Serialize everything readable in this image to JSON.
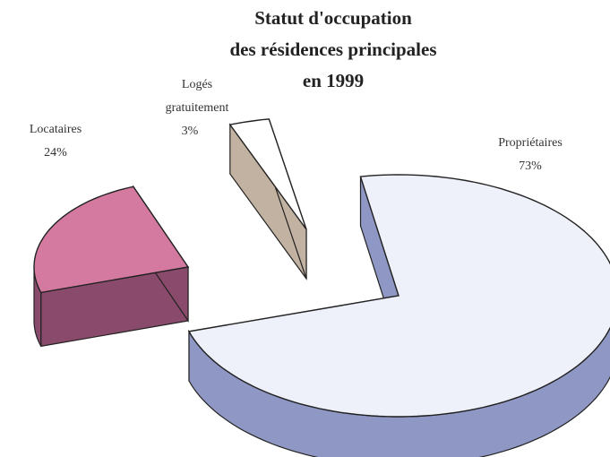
{
  "chart_data": {
    "type": "pie3d",
    "title": [
      "Statut d'occupation",
      "des résidences principales",
      "en 1999"
    ],
    "categories": [
      "Propriétaires",
      "Locataires",
      "Logés gratuitement"
    ],
    "values": [
      73,
      24,
      3
    ],
    "value_labels": [
      "73%",
      "24%",
      "3%"
    ],
    "colors": [
      "#eef0fa",
      "#d47aa0",
      "#ffffff"
    ],
    "side_colors": [
      "#8f98c4",
      "#8a4a6c",
      "#c2b2a2"
    ],
    "exploded": true
  }
}
